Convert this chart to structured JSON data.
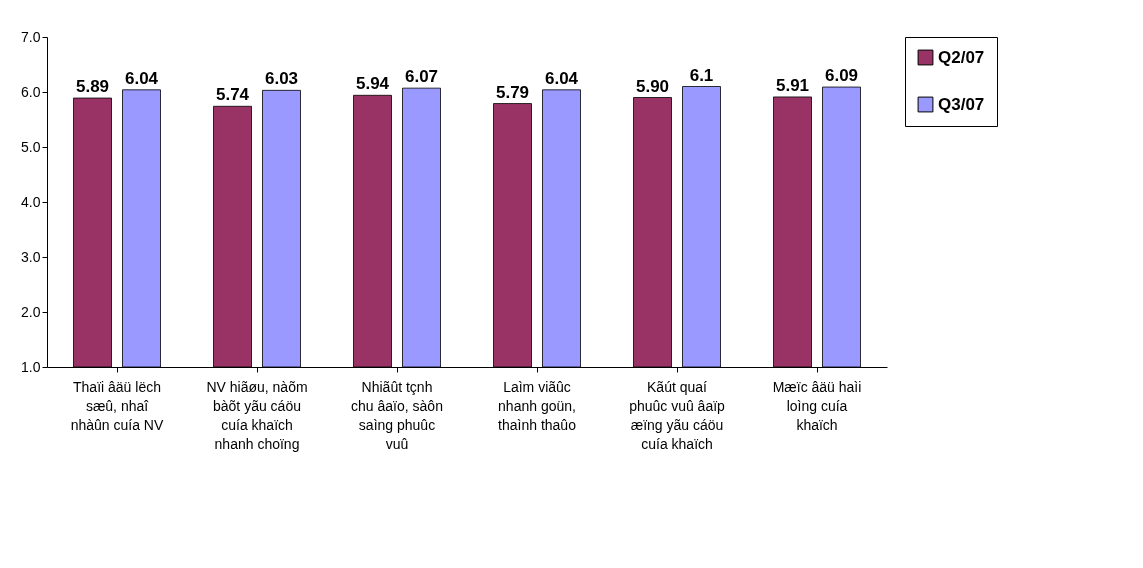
{
  "chart_data": {
    "type": "bar",
    "categories": [
      "Thaïi âäü lëch sæû, nhaî nhàûn cuía NV",
      "NV hiãøu, nàõm bàõt yãu cáöu cuía khaïch nhanh choïng",
      "Nhiãût tçnh chu âaïo, sàôn saìng phuûc vuû",
      "Laìm viãûc nhanh goün, thaình thaûo",
      "Kãút quaí phuûc vuû âaïp æïng yãu cáöu cuía khaïch",
      "Mæïc âäü haìi loìng cuía khaïch"
    ],
    "series": [
      {
        "name": "Q2/07",
        "color": "#993366",
        "values": [
          5.89,
          5.74,
          5.94,
          5.79,
          5.9,
          5.91
        ],
        "value_labels": [
          "5.89",
          "5.74",
          "5.94",
          "5.79",
          "5.90",
          "5.91"
        ]
      },
      {
        "name": "Q3/07",
        "color": "#9999ff",
        "values": [
          6.04,
          6.03,
          6.07,
          6.04,
          6.1,
          6.09
        ],
        "value_labels": [
          "6.04",
          "6.03",
          "6.07",
          "6.04",
          "6.1",
          "6.09"
        ]
      }
    ],
    "ylim": [
      1,
      7
    ],
    "yticks": [
      {
        "value": 1,
        "label": "1.0"
      },
      {
        "value": 2,
        "label": "2.0"
      },
      {
        "value": 3,
        "label": "3.0"
      },
      {
        "value": 4,
        "label": "4.0"
      },
      {
        "value": 5,
        "label": "5.0"
      },
      {
        "value": 6,
        "label": "6.0"
      },
      {
        "value": 7,
        "label": "7.0"
      }
    ],
    "grid": false,
    "legend": "right"
  }
}
